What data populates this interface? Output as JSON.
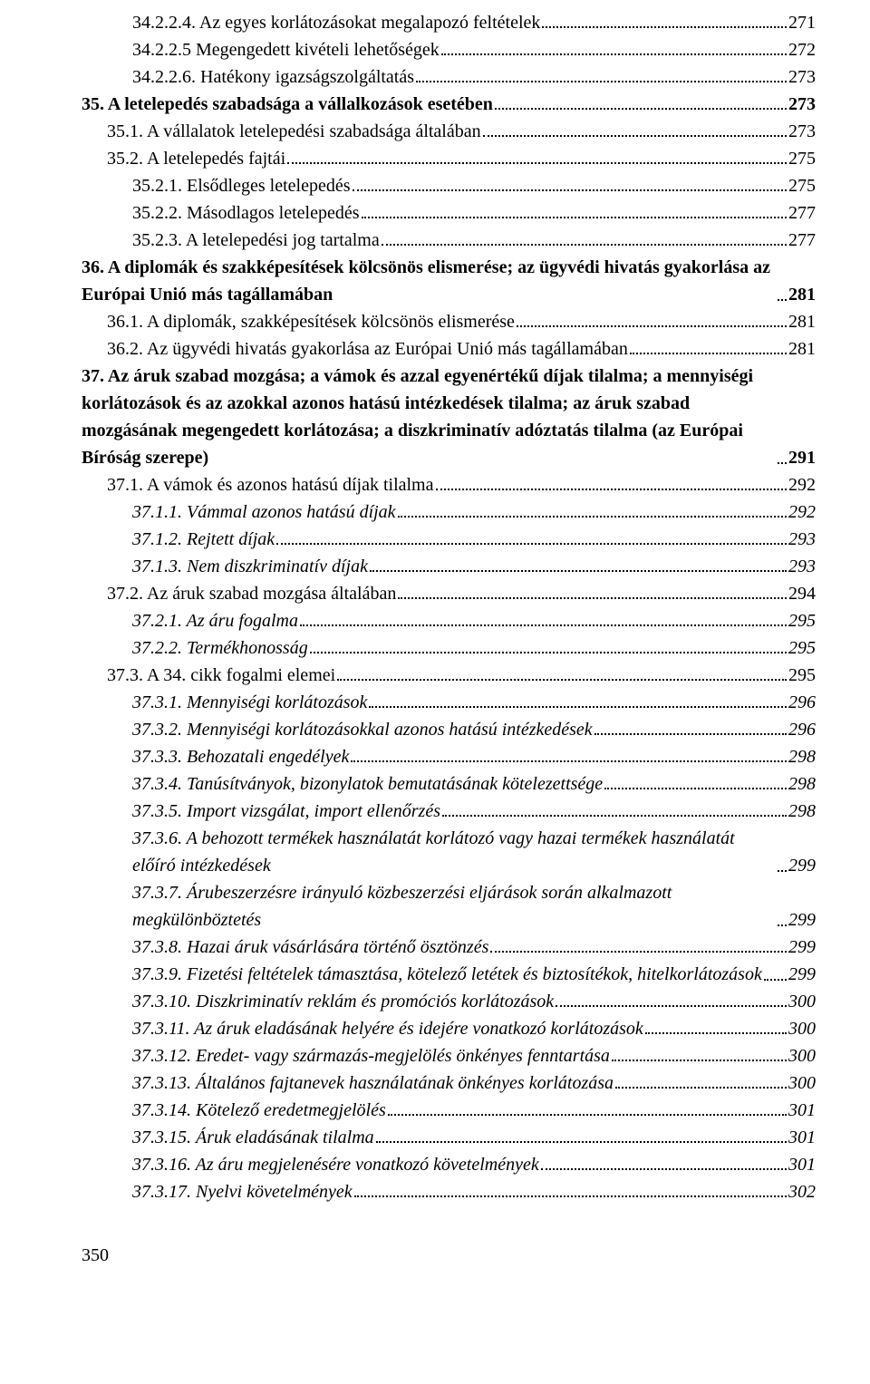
{
  "pageNumber": "350",
  "entries": [
    {
      "lvl": "lvl-2",
      "title": "34.2.2.4. Az egyes korlátozásokat megalapozó feltételek",
      "page": "271"
    },
    {
      "lvl": "lvl-2",
      "title": "34.2.2.5 Megengedett kivételi lehetőségek",
      "page": "272"
    },
    {
      "lvl": "lvl-2",
      "title": "34.2.2.6. Hatékony igazságszolgáltatás",
      "page": "273"
    },
    {
      "lvl": "lvl-0",
      "title": "35. A letelepedés szabadsága a vállalkozások esetében",
      "page": "273"
    },
    {
      "lvl": "lvl-1",
      "title": "35.1. A vállalatok letelepedési szabadsága általában",
      "page": "273"
    },
    {
      "lvl": "lvl-1",
      "title": "35.2. A letelepedés fajtái",
      "page": "275"
    },
    {
      "lvl": "lvl-2",
      "title": "35.2.1. Elsődleges letelepedés",
      "page": "275"
    },
    {
      "lvl": "lvl-2",
      "title": "35.2.2. Másodlagos letelepedés",
      "page": "277"
    },
    {
      "lvl": "lvl-2",
      "title": "35.2.3. A letelepedési jog tartalma",
      "page": "277"
    },
    {
      "lvl": "lvl-0",
      "title": "36. A diplomák és szakképesítések kölcsönös elismerése; az ügyvédi hivatás gyakorlása az Európai Unió más tagállamában",
      "page": "281",
      "multi": true
    },
    {
      "lvl": "lvl-1",
      "title": "36.1. A diplomák, szakképesítések kölcsönös elismerése",
      "page": "281"
    },
    {
      "lvl": "lvl-1",
      "title": "36.2. Az ügyvédi hivatás gyakorlása az Európai Unió más tagállamában",
      "page": "281"
    },
    {
      "lvl": "lvl-0",
      "title": "37. Az áruk szabad mozgása; a vámok és azzal egyenértékű díjak tilalma; a mennyiségi korlátozások és az azokkal azonos hatású intézkedések tilalma; az áruk szabad mozgásának megengedett korlátozása; a diszkriminatív adóztatás tilalma (az Európai Bíróság szerepe)",
      "page": "291",
      "multi": true
    },
    {
      "lvl": "lvl-1",
      "title": "37.1. A vámok és azonos hatású díjak tilalma",
      "page": "292"
    },
    {
      "lvl": "lvl-2i",
      "title": "37.1.1. Vámmal azonos hatású díjak",
      "page": "292"
    },
    {
      "lvl": "lvl-2i",
      "title": "37.1.2. Rejtett díjak",
      "page": "293"
    },
    {
      "lvl": "lvl-2i",
      "title": "37.1.3. Nem diszkriminatív díjak",
      "page": "293"
    },
    {
      "lvl": "lvl-1",
      "title": "37.2. Az áruk szabad mozgása általában",
      "page": "294"
    },
    {
      "lvl": "lvl-2i",
      "title": "37.2.1. Az áru fogalma",
      "page": "295"
    },
    {
      "lvl": "lvl-2i",
      "title": "37.2.2. Termékhonosság",
      "page": "295"
    },
    {
      "lvl": "lvl-1",
      "title": "37.3. A 34. cikk fogalmi elemei",
      "page": "295"
    },
    {
      "lvl": "lvl-2i",
      "title": "37.3.1. Mennyiségi korlátozások",
      "page": "296"
    },
    {
      "lvl": "lvl-2i",
      "title": "37.3.2. Mennyiségi korlátozásokkal azonos hatású intézkedések",
      "page": "296"
    },
    {
      "lvl": "lvl-2i",
      "title": "37.3.3. Behozatali engedélyek",
      "page": "298"
    },
    {
      "lvl": "lvl-2i",
      "title": "37.3.4. Tanúsítványok, bizonylatok bemutatásának kötelezettsége",
      "page": "298"
    },
    {
      "lvl": "lvl-2i",
      "title": "37.3.5. Import vizsgálat, import ellenőrzés",
      "page": "298"
    },
    {
      "lvl": "lvl-2i",
      "title": "37.3.6. A behozott termékek használatát korlátozó vagy hazai termékek használatát előíró intézkedések",
      "page": "299",
      "multi": true
    },
    {
      "lvl": "lvl-2i",
      "title": "37.3.7. Árubeszerzésre irányuló közbeszerzési eljárások során alkalmazott megkülönböztetés",
      "page": "299",
      "multi": true
    },
    {
      "lvl": "lvl-2i",
      "title": "37.3.8. Hazai áruk vásárlására történő ösztönzés",
      "page": "299"
    },
    {
      "lvl": "lvl-2i",
      "title": "37.3.9. Fizetési feltételek támasztása, kötelező letétek és biztosítékok, hitelkorlátozások",
      "page": "299",
      "multi": true
    },
    {
      "lvl": "lvl-2i",
      "title": "37.3.10. Diszkriminatív reklám és promóciós korlátozások",
      "page": "300"
    },
    {
      "lvl": "lvl-2i",
      "title": "37.3.11. Az áruk eladásának helyére és idejére vonatkozó korlátozások",
      "page": "300"
    },
    {
      "lvl": "lvl-2i",
      "title": "37.3.12. Eredet- vagy származás-megjelölés önkényes fenntartása",
      "page": "300"
    },
    {
      "lvl": "lvl-2i",
      "title": "37.3.13. Általános fajtanevek használatának önkényes korlátozása",
      "page": "300"
    },
    {
      "lvl": "lvl-2i",
      "title": "37.3.14. Kötelező eredetmegjelölés",
      "page": "301"
    },
    {
      "lvl": "lvl-2i",
      "title": "37.3.15. Áruk eladásának tilalma",
      "page": "301"
    },
    {
      "lvl": "lvl-2i",
      "title": "37.3.16. Az áru megjelenésére vonatkozó követelmények",
      "page": "301"
    },
    {
      "lvl": "lvl-2i",
      "title": "37.3.17. Nyelvi követelmények",
      "page": "302"
    }
  ]
}
